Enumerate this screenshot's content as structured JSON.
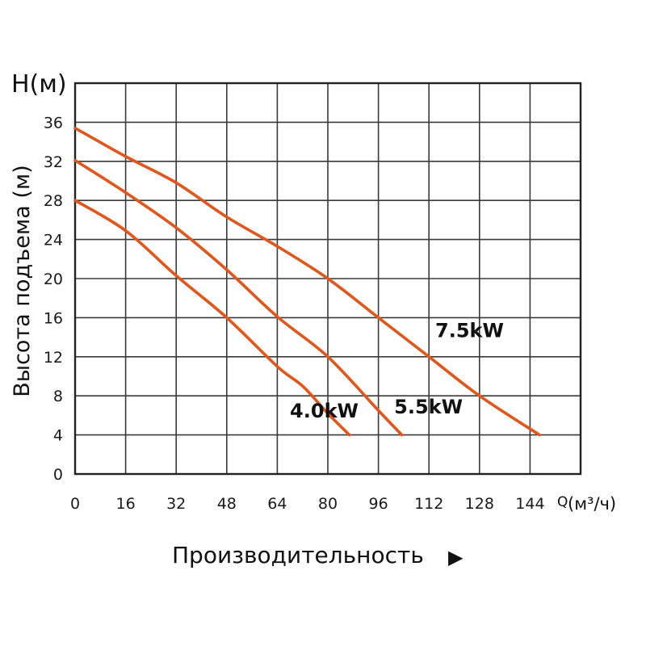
{
  "chart_data": {
    "type": "line",
    "title": "",
    "xlabel": "Производительность",
    "xunit_label": "Q(м³/ч)",
    "ylabel": "Высота подъема (м)",
    "yunit_label": "H(м)",
    "xlim": [
      0,
      160
    ],
    "ylim": [
      0,
      40
    ],
    "x_ticks": [
      0,
      16,
      32,
      48,
      64,
      80,
      96,
      112,
      128,
      144
    ],
    "y_ticks": [
      0,
      4,
      8,
      12,
      16,
      20,
      24,
      28,
      32,
      36
    ],
    "grid": true,
    "legend_position": "inline labels",
    "curve_color": "#e0561b",
    "series": [
      {
        "name": "4.0kW",
        "label_pos": {
          "x": 68,
          "y": 5.8
        },
        "x": [
          0,
          16,
          32,
          48,
          64,
          72,
          80,
          86.8
        ],
        "y": [
          28.0,
          24.9,
          20.3,
          16.0,
          11.0,
          9.0,
          6.2,
          4.0
        ]
      },
      {
        "name": "5.5kW",
        "label_pos": {
          "x": 101,
          "y": 6.2
        },
        "x": [
          0,
          16,
          32,
          48,
          64,
          80,
          96,
          103.4
        ],
        "y": [
          32.1,
          28.8,
          25.2,
          20.9,
          16.1,
          12.0,
          6.5,
          4.0
        ]
      },
      {
        "name": "7.5kW",
        "label_pos": {
          "x": 114,
          "y": 14.0
        },
        "x": [
          0,
          16,
          32,
          48,
          64,
          80,
          96,
          112,
          128,
          147
        ],
        "y": [
          35.4,
          32.5,
          29.8,
          26.3,
          23.3,
          20.0,
          16.0,
          12.0,
          8.0,
          4.0
        ]
      }
    ]
  },
  "labels": {
    "y_unit": "H(м)",
    "y_title": "Высота подъема (м)",
    "x_unit_prefix": "Q",
    "x_unit": "(м³/ч)",
    "x_title": "Производительность",
    "arrow_icon": "▶"
  }
}
